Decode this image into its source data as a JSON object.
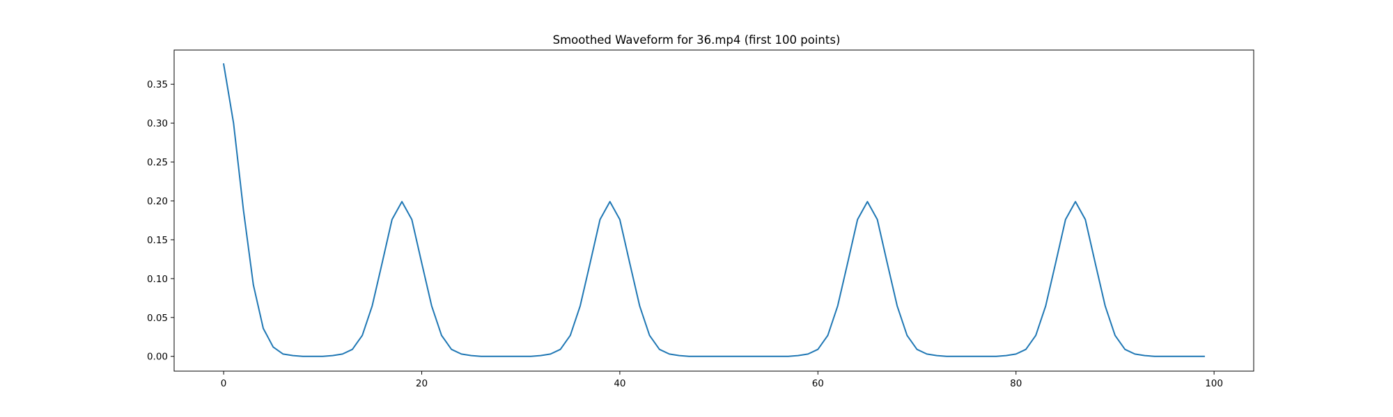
{
  "chart_data": {
    "type": "line",
    "title": "Smoothed Waveform for 36.mp4 (first 100 points)",
    "xlabel": "",
    "ylabel": "",
    "xlim": [
      -5,
      104
    ],
    "ylim": [
      -0.019,
      0.394
    ],
    "x_ticks": [
      0,
      20,
      40,
      60,
      80,
      100
    ],
    "x_tick_labels": [
      "0",
      "20",
      "40",
      "60",
      "80",
      "100"
    ],
    "y_ticks": [
      0.0,
      0.05,
      0.1,
      0.15,
      0.2,
      0.25,
      0.3,
      0.35
    ],
    "y_tick_labels": [
      "0.00",
      "0.05",
      "0.10",
      "0.15",
      "0.20",
      "0.25",
      "0.30",
      "0.35"
    ],
    "grid": false,
    "legend": "none",
    "series": [
      {
        "color": "#1f77b4",
        "x": [
          0,
          1,
          2,
          3,
          4,
          5,
          6,
          7,
          8,
          9,
          10,
          11,
          12,
          13,
          14,
          15,
          16,
          17,
          18,
          19,
          20,
          21,
          22,
          23,
          24,
          25,
          26,
          27,
          28,
          29,
          30,
          31,
          32,
          33,
          34,
          35,
          36,
          37,
          38,
          39,
          40,
          41,
          42,
          43,
          44,
          45,
          46,
          47,
          48,
          49,
          50,
          51,
          52,
          53,
          54,
          55,
          56,
          57,
          58,
          59,
          60,
          61,
          62,
          63,
          64,
          65,
          66,
          67,
          68,
          69,
          70,
          71,
          72,
          73,
          74,
          75,
          76,
          77,
          78,
          79,
          80,
          81,
          82,
          83,
          84,
          85,
          86,
          87,
          88,
          89,
          90,
          91,
          92,
          93,
          94,
          95,
          96,
          97,
          98,
          99
        ],
        "values": [
          0.376,
          0.3,
          0.188,
          0.092,
          0.036,
          0.012,
          0.003,
          0.001,
          0.0,
          0.0,
          0.0,
          0.001,
          0.003,
          0.009,
          0.027,
          0.065,
          0.12,
          0.176,
          0.199,
          0.176,
          0.12,
          0.065,
          0.027,
          0.009,
          0.003,
          0.001,
          0.0,
          0.0,
          0.0,
          0.0,
          0.0,
          0.0,
          0.001,
          0.003,
          0.009,
          0.027,
          0.065,
          0.12,
          0.176,
          0.199,
          0.176,
          0.12,
          0.065,
          0.027,
          0.009,
          0.003,
          0.001,
          0.0,
          0.0,
          0.0,
          0.0,
          0.0,
          0.0,
          0.0,
          0.0,
          0.0,
          0.0,
          0.0,
          0.001,
          0.003,
          0.009,
          0.027,
          0.065,
          0.12,
          0.176,
          0.199,
          0.176,
          0.12,
          0.065,
          0.027,
          0.009,
          0.003,
          0.001,
          0.0,
          0.0,
          0.0,
          0.0,
          0.0,
          0.0,
          0.001,
          0.003,
          0.009,
          0.027,
          0.065,
          0.12,
          0.176,
          0.199,
          0.176,
          0.12,
          0.065,
          0.027,
          0.009,
          0.003,
          0.001,
          0.0,
          0.0,
          0.0,
          0.0,
          0.0,
          0.0
        ]
      }
    ]
  }
}
